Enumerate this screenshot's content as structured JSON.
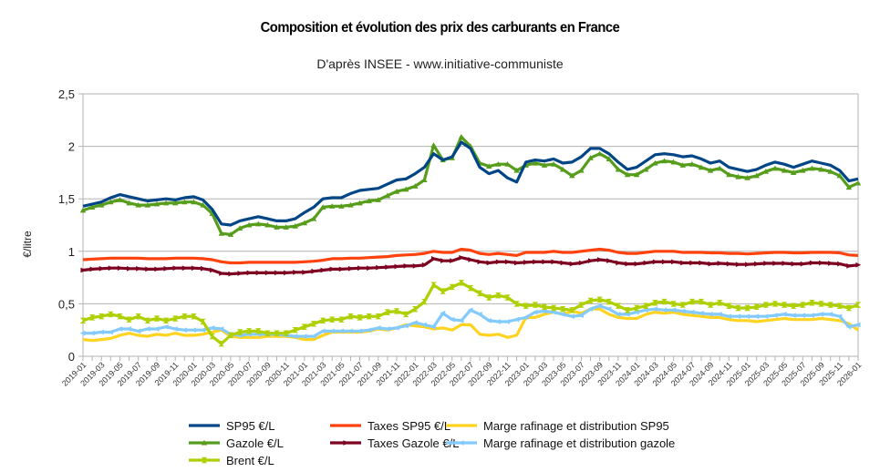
{
  "chart_data": {
    "type": "line",
    "title": "Composition et évolution des prix des carburants en France",
    "subtitle": "D'après INSEE - www.initiative-communiste",
    "xlabel": "",
    "ylabel": "€/litre",
    "ylim": [
      0,
      2.5
    ],
    "yticks": [
      0,
      0.5,
      1,
      1.5,
      2,
      2.5
    ],
    "ytick_labels": [
      "0",
      "0,5",
      "1",
      "1,5",
      "2",
      "2,5"
    ],
    "grid": true,
    "legend_position": "bottom",
    "x": [
      "2019-01",
      "2019-02",
      "2019-03",
      "2019-04",
      "2019-05",
      "2019-06",
      "2019-07",
      "2019-08",
      "2019-09",
      "2019-10",
      "2019-11",
      "2019-12",
      "2020-01",
      "2020-02",
      "2020-03",
      "2020-04",
      "2020-05",
      "2020-06",
      "2020-07",
      "2020-08",
      "2020-09",
      "2020-10",
      "2020-11",
      "2020-12",
      "2021-01",
      "2021-02",
      "2021-03",
      "2021-04",
      "2021-05",
      "2021-06",
      "2021-07",
      "2021-08",
      "2021-09",
      "2021-10",
      "2021-11",
      "2021-12",
      "2022-01",
      "2022-02",
      "2022-03",
      "2022-04",
      "2022-05",
      "2022-06",
      "2022-07",
      "2022-08",
      "2022-09",
      "2022-10",
      "2022-11",
      "2022-12",
      "2023-01",
      "2023-02",
      "2023-03",
      "2023-04",
      "2023-05",
      "2023-06",
      "2023-07",
      "2023-08",
      "2023-09",
      "2023-10",
      "2023-11",
      "2023-12",
      "2024-01",
      "2024-02",
      "2024-03",
      "2024-04",
      "2024-05",
      "2024-06",
      "2024-07",
      "2024-08",
      "2024-09",
      "2024-10",
      "2024-11",
      "2024-12",
      "2025-01",
      "2025-02",
      "2025-03",
      "2025-04",
      "2025-05",
      "2025-06",
      "2025-07",
      "2025-08",
      "2025-09",
      "2025-10",
      "2025-11",
      "2025-12",
      "2026-01"
    ],
    "xtick_labels": [
      "2019-01",
      "2019-03",
      "2019-05",
      "2019-07",
      "2019-09",
      "2019-11",
      "2020-01",
      "2020-03",
      "2020-05",
      "2020-07",
      "2020-09",
      "2020-11",
      "2021-01",
      "2021-03",
      "2021-05",
      "2021-07",
      "2021-09",
      "2021-11",
      "2022-01",
      "2022-03",
      "2022-05",
      "2022-07",
      "2022-09",
      "2022-11",
      "2023-01",
      "2023-03",
      "2023-05",
      "2023-07",
      "2023-09",
      "2023-11",
      "2024-01",
      "2024-03",
      "2024-05",
      "2024-07",
      "2024-09",
      "2024-11",
      "2025-01",
      "2025-03",
      "2025-05",
      "2025-07",
      "2025-09",
      "2025-11",
      "2026-01"
    ],
    "series": [
      {
        "name": "SP95 €/L",
        "color": "#004586",
        "marker": "none",
        "values": [
          1.43,
          1.45,
          1.47,
          1.51,
          1.54,
          1.52,
          1.5,
          1.48,
          1.49,
          1.5,
          1.49,
          1.51,
          1.52,
          1.49,
          1.4,
          1.26,
          1.25,
          1.29,
          1.31,
          1.33,
          1.31,
          1.29,
          1.29,
          1.31,
          1.37,
          1.42,
          1.5,
          1.51,
          1.51,
          1.55,
          1.58,
          1.59,
          1.6,
          1.64,
          1.68,
          1.69,
          1.74,
          1.8,
          1.93,
          1.87,
          1.9,
          2.04,
          1.98,
          1.8,
          1.74,
          1.77,
          1.7,
          1.66,
          1.85,
          1.87,
          1.86,
          1.88,
          1.84,
          1.85,
          1.9,
          1.98,
          1.98,
          1.93,
          1.85,
          1.78,
          1.8,
          1.86,
          1.92,
          1.93,
          1.92,
          1.9,
          1.91,
          1.88,
          1.84,
          1.86,
          1.8,
          1.78,
          1.76,
          1.78,
          1.82,
          1.85,
          1.83,
          1.8,
          1.83,
          1.86,
          1.84,
          1.82,
          1.77,
          1.67,
          1.69
        ]
      },
      {
        "name": "Taxes SP95 €/L",
        "color": "#ff420e",
        "marker": "none",
        "values": [
          0.92,
          0.925,
          0.93,
          0.935,
          0.935,
          0.935,
          0.935,
          0.93,
          0.93,
          0.93,
          0.935,
          0.935,
          0.935,
          0.93,
          0.92,
          0.9,
          0.89,
          0.89,
          0.895,
          0.895,
          0.895,
          0.895,
          0.895,
          0.895,
          0.9,
          0.905,
          0.915,
          0.93,
          0.93,
          0.935,
          0.935,
          0.94,
          0.945,
          0.95,
          0.96,
          0.965,
          0.97,
          0.98,
          1.0,
          0.99,
          0.99,
          1.02,
          1.01,
          0.98,
          0.97,
          0.98,
          0.97,
          0.96,
          0.99,
          0.99,
          0.99,
          1.0,
          0.99,
          0.99,
          1.0,
          1.01,
          1.02,
          1.01,
          0.99,
          0.98,
          0.98,
          0.99,
          1.0,
          1.0,
          1.0,
          0.99,
          0.99,
          0.99,
          0.985,
          0.985,
          0.98,
          0.98,
          0.975,
          0.98,
          0.985,
          0.99,
          0.99,
          0.985,
          0.985,
          0.99,
          0.99,
          0.99,
          0.985,
          0.965,
          0.96
        ]
      },
      {
        "name": "Marge rafinage et distribution SP95",
        "color": "#ffd320",
        "marker": "none",
        "values": [
          0.16,
          0.15,
          0.16,
          0.17,
          0.2,
          0.22,
          0.2,
          0.19,
          0.21,
          0.2,
          0.22,
          0.2,
          0.2,
          0.21,
          0.23,
          0.25,
          0.19,
          0.18,
          0.18,
          0.18,
          0.19,
          0.19,
          0.19,
          0.18,
          0.16,
          0.16,
          0.2,
          0.23,
          0.23,
          0.23,
          0.23,
          0.24,
          0.26,
          0.25,
          0.27,
          0.3,
          0.29,
          0.28,
          0.26,
          0.27,
          0.25,
          0.3,
          0.3,
          0.21,
          0.2,
          0.21,
          0.18,
          0.2,
          0.37,
          0.37,
          0.4,
          0.42,
          0.4,
          0.43,
          0.41,
          0.45,
          0.45,
          0.4,
          0.37,
          0.36,
          0.36,
          0.4,
          0.42,
          0.41,
          0.42,
          0.4,
          0.39,
          0.38,
          0.37,
          0.37,
          0.35,
          0.34,
          0.34,
          0.33,
          0.34,
          0.35,
          0.36,
          0.35,
          0.35,
          0.35,
          0.36,
          0.35,
          0.34,
          0.31,
          0.25
        ]
      },
      {
        "name": "Gazole €/L",
        "color": "#579d1c",
        "marker": "triangle",
        "values": [
          1.39,
          1.42,
          1.44,
          1.47,
          1.49,
          1.46,
          1.44,
          1.44,
          1.45,
          1.46,
          1.46,
          1.47,
          1.47,
          1.44,
          1.36,
          1.17,
          1.16,
          1.22,
          1.25,
          1.26,
          1.25,
          1.23,
          1.23,
          1.24,
          1.27,
          1.31,
          1.42,
          1.43,
          1.43,
          1.44,
          1.46,
          1.48,
          1.49,
          1.53,
          1.57,
          1.59,
          1.62,
          1.68,
          2.01,
          1.87,
          1.89,
          2.09,
          2.0,
          1.84,
          1.81,
          1.83,
          1.83,
          1.77,
          1.82,
          1.84,
          1.82,
          1.83,
          1.78,
          1.72,
          1.77,
          1.89,
          1.93,
          1.88,
          1.78,
          1.73,
          1.73,
          1.78,
          1.84,
          1.86,
          1.85,
          1.82,
          1.83,
          1.8,
          1.77,
          1.79,
          1.73,
          1.71,
          1.7,
          1.72,
          1.76,
          1.79,
          1.77,
          1.75,
          1.77,
          1.79,
          1.78,
          1.76,
          1.72,
          1.61,
          1.65
        ]
      },
      {
        "name": "Taxes Gazole €/L",
        "color": "#7e0021",
        "marker": "arrow-right",
        "values": [
          0.82,
          0.83,
          0.835,
          0.84,
          0.84,
          0.835,
          0.835,
          0.83,
          0.83,
          0.835,
          0.84,
          0.84,
          0.84,
          0.835,
          0.82,
          0.79,
          0.785,
          0.79,
          0.795,
          0.795,
          0.795,
          0.795,
          0.795,
          0.8,
          0.8,
          0.81,
          0.82,
          0.83,
          0.83,
          0.835,
          0.84,
          0.84,
          0.845,
          0.85,
          0.855,
          0.86,
          0.86,
          0.87,
          0.93,
          0.91,
          0.91,
          0.94,
          0.92,
          0.9,
          0.89,
          0.9,
          0.9,
          0.89,
          0.895,
          0.9,
          0.9,
          0.9,
          0.89,
          0.88,
          0.89,
          0.91,
          0.92,
          0.91,
          0.89,
          0.88,
          0.88,
          0.89,
          0.9,
          0.9,
          0.9,
          0.89,
          0.89,
          0.89,
          0.88,
          0.885,
          0.88,
          0.875,
          0.875,
          0.88,
          0.885,
          0.885,
          0.885,
          0.88,
          0.88,
          0.89,
          0.89,
          0.885,
          0.88,
          0.86,
          0.87
        ]
      },
      {
        "name": "Marge rafinage et distribution gazole",
        "color": "#83caff",
        "marker": "arrow-left",
        "values": [
          0.22,
          0.22,
          0.23,
          0.23,
          0.26,
          0.26,
          0.24,
          0.26,
          0.26,
          0.28,
          0.26,
          0.25,
          0.25,
          0.25,
          0.27,
          0.26,
          0.21,
          0.2,
          0.21,
          0.21,
          0.21,
          0.21,
          0.2,
          0.19,
          0.19,
          0.19,
          0.24,
          0.24,
          0.24,
          0.24,
          0.24,
          0.25,
          0.27,
          0.26,
          0.27,
          0.29,
          0.32,
          0.3,
          0.28,
          0.41,
          0.35,
          0.34,
          0.44,
          0.4,
          0.34,
          0.33,
          0.33,
          0.35,
          0.37,
          0.42,
          0.43,
          0.42,
          0.4,
          0.38,
          0.39,
          0.45,
          0.48,
          0.45,
          0.4,
          0.4,
          0.42,
          0.44,
          0.45,
          0.44,
          0.44,
          0.43,
          0.42,
          0.41,
          0.4,
          0.4,
          0.38,
          0.38,
          0.38,
          0.38,
          0.38,
          0.39,
          0.4,
          0.39,
          0.39,
          0.39,
          0.4,
          0.4,
          0.38,
          0.28,
          0.3
        ]
      },
      {
        "name": "Brent €/L",
        "color": "#aecf00",
        "marker": "cross",
        "values": [
          0.34,
          0.37,
          0.38,
          0.4,
          0.38,
          0.35,
          0.38,
          0.34,
          0.36,
          0.34,
          0.36,
          0.38,
          0.38,
          0.33,
          0.19,
          0.12,
          0.2,
          0.23,
          0.24,
          0.24,
          0.22,
          0.22,
          0.22,
          0.25,
          0.28,
          0.31,
          0.34,
          0.35,
          0.35,
          0.38,
          0.37,
          0.38,
          0.38,
          0.42,
          0.43,
          0.4,
          0.45,
          0.52,
          0.68,
          0.62,
          0.66,
          0.7,
          0.65,
          0.6,
          0.56,
          0.58,
          0.56,
          0.5,
          0.48,
          0.49,
          0.47,
          0.46,
          0.45,
          0.44,
          0.49,
          0.53,
          0.54,
          0.52,
          0.48,
          0.44,
          0.46,
          0.48,
          0.51,
          0.52,
          0.5,
          0.49,
          0.52,
          0.52,
          0.49,
          0.51,
          0.48,
          0.46,
          0.46,
          0.47,
          0.49,
          0.5,
          0.49,
          0.48,
          0.49,
          0.51,
          0.5,
          0.49,
          0.48,
          0.46,
          0.49
        ]
      }
    ]
  }
}
